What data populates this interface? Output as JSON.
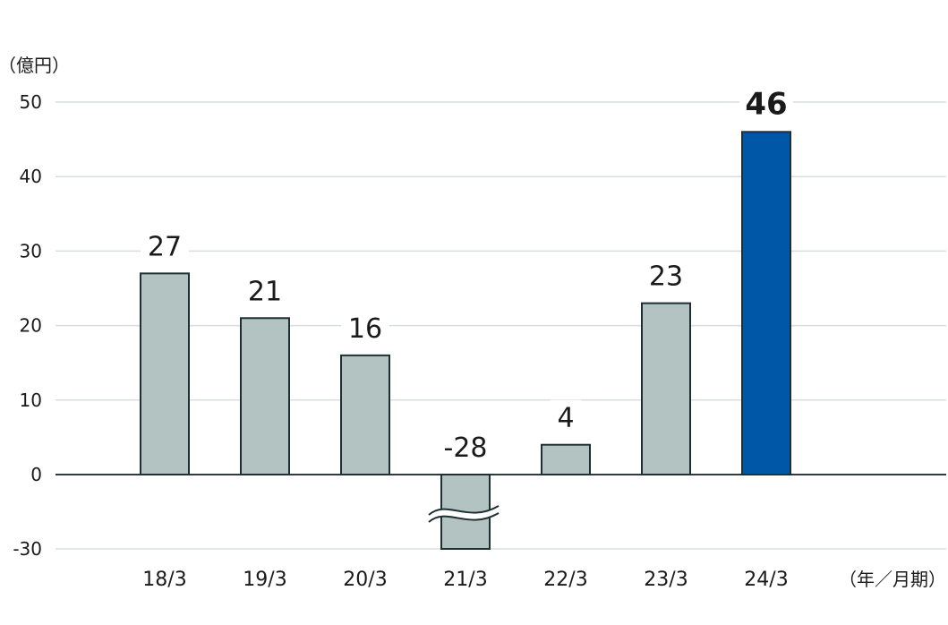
{
  "chart_data": {
    "type": "bar",
    "y_unit_label": "（億円）",
    "x_unit_label": "（年／月期）",
    "categories": [
      "18/3",
      "19/3",
      "20/3",
      "21/3",
      "22/3",
      "23/3",
      "24/3"
    ],
    "values": [
      27,
      21,
      16,
      -28,
      4,
      23,
      46
    ],
    "value_labels": [
      "27",
      "21",
      "16",
      "-28",
      "4",
      "23",
      "46"
    ],
    "y_ticks": [
      {
        "value": 50,
        "label": "50"
      },
      {
        "value": 40,
        "label": "40"
      },
      {
        "value": 30,
        "label": "30"
      },
      {
        "value": 20,
        "label": "20"
      },
      {
        "value": 10,
        "label": "10"
      },
      {
        "value": 0,
        "label": "0"
      },
      {
        "value": -30,
        "label": "-30"
      }
    ],
    "ylim": [
      -30,
      50
    ],
    "axis_break": {
      "category": "21/3",
      "between": [
        0,
        -30
      ]
    },
    "grid": true,
    "highlight_category": "24/3",
    "colors": {
      "bar": "#b2c3c1",
      "bar_highlight": "#0057a8",
      "bar_stroke": "#1f3033",
      "grid": "#d9dde0",
      "axis": "#2e3d42"
    }
  }
}
